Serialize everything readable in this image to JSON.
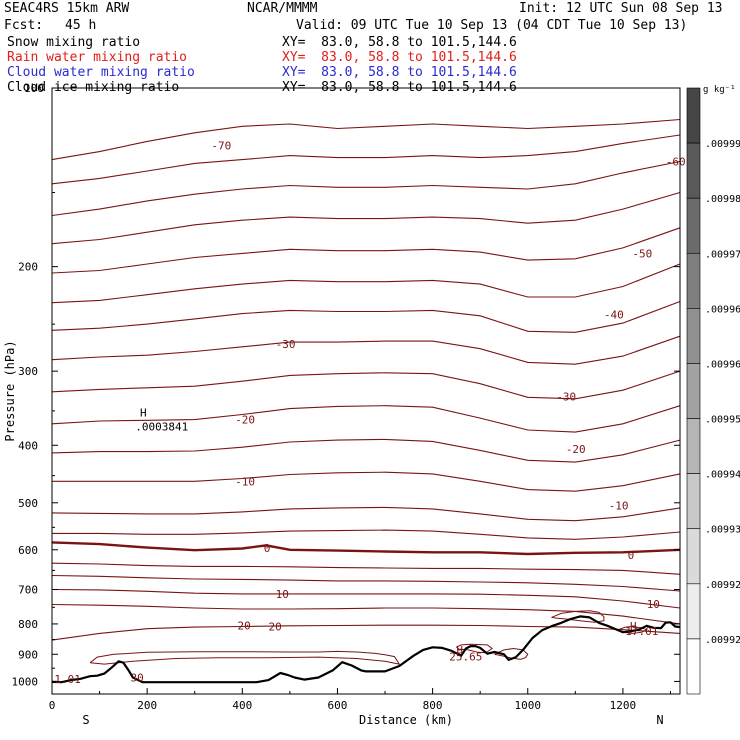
{
  "header": {
    "model": "SEAC4RS 15km ARW",
    "center": "NCAR/MMMM",
    "init": "Init: 12 UTC Sun 08 Sep 13",
    "fcst_label": "Fcst:",
    "fcst_value": "45 h",
    "valid": "Valid: 09 UTC Tue 10 Sep 13 (04 CDT Tue 10 Sep 13)"
  },
  "fields": [
    {
      "name": "Snow mixing ratio",
      "color": "#000000",
      "xy": "XY=  83.0, 58.8 to 101.5,144.6"
    },
    {
      "name": "Rain water mixing ratio",
      "color": "#e0201a",
      "xy": "XY=  83.0, 58.8 to 101.5,144.6"
    },
    {
      "name": "Cloud water mixing ratio",
      "color": "#2b2bd0",
      "xy": "XY=  83.0, 58.8 to 101.5,144.6"
    },
    {
      "name": "Cloud ice mixing ratio",
      "color": "#000000",
      "xy": "XY=  83.0, 58.8 to 101.5,144.6"
    }
  ],
  "colors": {
    "contour": "#7a1414",
    "terrain": "#000000",
    "axis": "#000000"
  },
  "chart_data": {
    "type": "line",
    "xlabel": "Distance (km)",
    "ylabel": "Pressure (hPa)",
    "xlim": [
      0,
      1320
    ],
    "ylim": [
      1050,
      100
    ],
    "y_scale": "log",
    "x_ticks": [
      0,
      200,
      400,
      600,
      800,
      1000,
      1200
    ],
    "y_ticks": [
      200,
      300,
      400,
      500,
      600,
      700,
      800,
      900,
      1000
    ],
    "y_tick_labels": [
      "200",
      "300",
      "400",
      "500",
      "600",
      "700",
      "800",
      "900",
      "1000"
    ],
    "x_end_labels": {
      "left": "S",
      "right": "N"
    },
    "top_left_label": "100",
    "colorbar": {
      "unit": "g kg⁻¹",
      "labels": [
        ".00999",
        ".00998",
        ".00997",
        ".00996",
        ".00996",
        ".00995",
        ".00994",
        ".00993",
        ".00992",
        ".00992"
      ]
    },
    "terrain": {
      "x": [
        0,
        20,
        40,
        60,
        80,
        95,
        110,
        125,
        140,
        150,
        160,
        170,
        190,
        230,
        300,
        380,
        410,
        430,
        455,
        480,
        495,
        510,
        530,
        560,
        590,
        610,
        630,
        650,
        660,
        680,
        700,
        730,
        760,
        780,
        800,
        820,
        840,
        860,
        870,
        880,
        890,
        900,
        915,
        930,
        950,
        960,
        975,
        990,
        1010,
        1030,
        1050,
        1070,
        1090,
        1110,
        1130,
        1150,
        1170,
        1190,
        1200,
        1215,
        1235,
        1250,
        1265,
        1280,
        1290,
        1300,
        1310,
        1320
      ],
      "p": [
        1002,
        1003,
        995,
        990,
        980,
        978,
        970,
        948,
        925,
        930,
        955,
        985,
        1003,
        1003,
        1003,
        1003,
        1003,
        1003,
        995,
        968,
        975,
        985,
        993,
        985,
        958,
        928,
        940,
        958,
        962,
        962,
        962,
        942,
        905,
        885,
        876,
        878,
        888,
        905,
        880,
        872,
        872,
        878,
        898,
        892,
        900,
        920,
        910,
        885,
        845,
        820,
        807,
        797,
        785,
        777,
        780,
        797,
        807,
        820,
        826,
        824,
        817,
        806,
        812,
        813,
        796,
        795,
        808,
        810
      ]
    },
    "isotherms": [
      {
        "label": "-70",
        "x": [
          0,
          100,
          200,
          300,
          400,
          500,
          600,
          700,
          800,
          900,
          1000,
          1100,
          1200,
          1320
        ],
        "p": [
          132,
          128,
          123,
          119,
          116,
          115,
          117,
          116,
          115,
          116,
          117,
          116,
          115,
          113
        ]
      },
      {
        "label": "",
        "x": [
          0,
          100,
          200,
          300,
          400,
          500,
          600,
          700,
          800,
          900,
          1000,
          1100,
          1200,
          1320
        ],
        "p": [
          145,
          142,
          138,
          134,
          132,
          130,
          131,
          131,
          130,
          131,
          130,
          128,
          124,
          120
        ]
      },
      {
        "label": "-60",
        "x": [
          0,
          100,
          200,
          300,
          400,
          500,
          600,
          700,
          800,
          900,
          1000,
          1100,
          1200,
          1320
        ],
        "p": [
          164,
          160,
          155,
          151,
          148,
          146,
          147,
          147,
          146,
          147,
          148,
          145,
          139,
          133
        ]
      },
      {
        "label": "",
        "x": [
          0,
          100,
          200,
          300,
          400,
          500,
          600,
          700,
          800,
          900,
          1000,
          1100,
          1200,
          1320
        ],
        "p": [
          183,
          180,
          175,
          170,
          167,
          165,
          166,
          166,
          165,
          166,
          169,
          167,
          160,
          150
        ]
      },
      {
        "label": "-50",
        "x": [
          0,
          100,
          200,
          300,
          400,
          500,
          600,
          700,
          800,
          900,
          1000,
          1100,
          1200,
          1320
        ],
        "p": [
          205,
          203,
          198,
          193,
          190,
          187,
          188,
          188,
          187,
          189,
          195,
          194,
          186,
          172
        ]
      },
      {
        "label": "",
        "x": [
          0,
          100,
          200,
          300,
          400,
          500,
          600,
          700,
          800,
          900,
          1000,
          1100,
          1200,
          1320
        ],
        "p": [
          230,
          228,
          223,
          218,
          214,
          211,
          212,
          212,
          211,
          214,
          225,
          225,
          216,
          198
        ]
      },
      {
        "label": "-40",
        "x": [
          0,
          100,
          200,
          300,
          400,
          500,
          600,
          700,
          800,
          900,
          1000,
          1100,
          1200,
          1320
        ],
        "p": [
          256,
          254,
          250,
          245,
          240,
          237,
          238,
          238,
          237,
          242,
          257,
          258,
          249,
          229
        ]
      },
      {
        "label": "-30",
        "x": [
          0,
          100,
          200,
          300,
          400,
          500,
          600,
          700,
          800,
          900,
          1000,
          1100,
          1200,
          1320
        ],
        "p": [
          287,
          284,
          282,
          278,
          273,
          268,
          268,
          267,
          267,
          275,
          290,
          292,
          283,
          262
        ]
      },
      {
        "label": "",
        "x": [
          0,
          100,
          200,
          300,
          400,
          500,
          600,
          700,
          800,
          900,
          1000,
          1100,
          1200,
          1320
        ],
        "p": [
          325,
          322,
          320,
          318,
          312,
          305,
          303,
          302,
          303,
          315,
          332,
          334,
          323,
          300
        ]
      },
      {
        "label": "-20",
        "x": [
          0,
          100,
          200,
          300,
          400,
          500,
          600,
          700,
          800,
          900,
          1000,
          1100,
          1200,
          1320
        ],
        "p": [
          368,
          364,
          363,
          362,
          355,
          347,
          344,
          343,
          345,
          360,
          377,
          380,
          368,
          343
        ]
      },
      {
        "label": "",
        "x": [
          0,
          100,
          200,
          300,
          400,
          500,
          600,
          700,
          800,
          900,
          1000,
          1100,
          1200,
          1320
        ],
        "p": [
          412,
          410,
          410,
          409,
          403,
          395,
          392,
          391,
          394,
          408,
          424,
          427,
          415,
          392
        ]
      },
      {
        "label": "-10",
        "x": [
          0,
          100,
          200,
          300,
          400,
          500,
          600,
          700,
          800,
          900,
          1000,
          1100,
          1200,
          1320
        ],
        "p": [
          460,
          460,
          460,
          460,
          455,
          448,
          445,
          444,
          447,
          460,
          475,
          478,
          468,
          447
        ]
      },
      {
        "label": "",
        "x": [
          0,
          100,
          200,
          300,
          400,
          500,
          600,
          700,
          800,
          900,
          1000,
          1100,
          1200,
          1320
        ],
        "p": [
          520,
          521,
          522,
          522,
          518,
          512,
          510,
          509,
          512,
          522,
          533,
          536,
          528,
          510
        ]
      },
      {
        "label": "",
        "x": [
          0,
          100,
          200,
          300,
          400,
          500,
          600,
          700,
          800,
          900,
          1000,
          1100,
          1200,
          1320
        ],
        "p": [
          563,
          563,
          565,
          565,
          562,
          558,
          557,
          556,
          558,
          565,
          573,
          576,
          571,
          560
        ]
      },
      {
        "label": "0",
        "bold": true,
        "x": [
          0,
          100,
          200,
          300,
          400,
          450,
          500,
          600,
          700,
          800,
          900,
          1000,
          1100,
          1200,
          1320
        ],
        "p": [
          583,
          587,
          595,
          601,
          597,
          590,
          600,
          602,
          604,
          606,
          606,
          610,
          607,
          606,
          600
        ]
      },
      {
        "label": "",
        "x": [
          0,
          100,
          200,
          300,
          400,
          500,
          600,
          700,
          800,
          900,
          1000,
          1100,
          1200,
          1320
        ],
        "p": [
          632,
          634,
          638,
          640,
          640,
          641,
          643,
          644,
          645,
          645,
          647,
          648,
          650,
          660
        ]
      },
      {
        "label": "",
        "x": [
          0,
          100,
          200,
          300,
          400,
          500,
          600,
          700,
          800,
          900,
          1000,
          1100,
          1200,
          1320
        ],
        "p": [
          663,
          665,
          669,
          672,
          673,
          675,
          677,
          677,
          678,
          680,
          682,
          686,
          692,
          704
        ]
      },
      {
        "label": "10",
        "x": [
          0,
          100,
          200,
          300,
          400,
          500,
          600,
          700,
          800,
          900,
          1000,
          1100,
          1200,
          1320
        ],
        "p": [
          700,
          701,
          705,
          710,
          712,
          712,
          712,
          712,
          712,
          713,
          716,
          720,
          732,
          752
        ]
      },
      {
        "label": "",
        "x": [
          0,
          100,
          200,
          300,
          400,
          500,
          600,
          700,
          800,
          900,
          1000,
          1100,
          1200,
          1320
        ],
        "p": [
          742,
          744,
          747,
          752,
          755,
          755,
          754,
          752,
          752,
          754,
          757,
          762,
          776,
          800
        ]
      },
      {
        "label": "20",
        "x": [
          0,
          100,
          200,
          300,
          400,
          500,
          600,
          700,
          800,
          900,
          1000,
          1100,
          1200,
          1320
        ],
        "p": [
          852,
          830,
          815,
          810,
          808,
          806,
          805,
          804,
          804,
          805,
          808,
          810,
          818,
          830
        ]
      }
    ],
    "annotations": [
      {
        "text": "H",
        "x": 185,
        "p": 352
      },
      {
        "text": ".0003841",
        "x": 175,
        "p": 372
      },
      {
        "text": "-70",
        "x": 335,
        "p": 125
      },
      {
        "text": "-60",
        "x": 1290,
        "p": 133
      },
      {
        "text": "-50",
        "x": 1220,
        "p": 190
      },
      {
        "text": "-40",
        "x": 1160,
        "p": 241
      },
      {
        "text": "-30",
        "x": 470,
        "p": 270
      },
      {
        "text": "-30",
        "x": 1060,
        "p": 331
      },
      {
        "text": "-20",
        "x": 385,
        "p": 362
      },
      {
        "text": "-20",
        "x": 1080,
        "p": 406
      },
      {
        "text": "-10",
        "x": 385,
        "p": 460
      },
      {
        "text": "-10",
        "x": 1170,
        "p": 505
      },
      {
        "text": "0",
        "x": 445,
        "p": 596
      },
      {
        "text": "0",
        "x": 1210,
        "p": 612
      },
      {
        "text": "10",
        "x": 470,
        "p": 713
      },
      {
        "text": "10",
        "x": 1250,
        "p": 740
      },
      {
        "text": "20",
        "x": 390,
        "p": 805
      },
      {
        "text": "20",
        "x": 455,
        "p": 808
      },
      {
        "text": "H",
        "x": 850,
        "p": 885
      },
      {
        "text": "25.65",
        "x": 835,
        "p": 908
      },
      {
        "text": "H",
        "x": 1215,
        "p": 807
      },
      {
        "text": "17.01",
        "x": 1205,
        "p": 823
      },
      {
        "text": "1.01",
        "x": 5,
        "p": 990
      },
      {
        "text": "30",
        "x": 165,
        "p": 985
      }
    ]
  }
}
